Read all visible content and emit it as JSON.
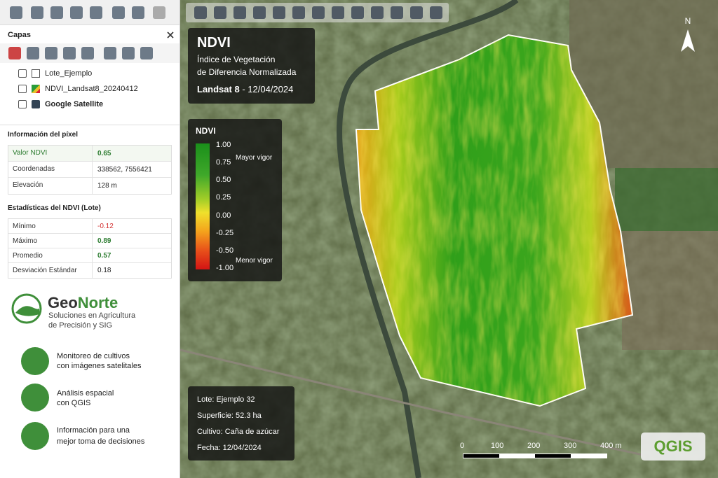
{
  "layers_panel": {
    "title": "Capas",
    "layers": [
      "Lote_Ejemplo",
      "NDVI_Landsat8_20240412",
      "Google Satellite"
    ]
  },
  "pixel_info": {
    "title": "Información del píxel",
    "rows": [
      [
        "Valor NDVI",
        "0.65"
      ],
      [
        "Coordenadas",
        "338562, 7556421"
      ],
      [
        "Elevación",
        "128 m"
      ]
    ]
  },
  "stats": {
    "title": "Estadísticas del NDVI (Lote)",
    "rows": [
      [
        "Mínimo",
        "-0.12"
      ],
      [
        "Máximo",
        "0.89"
      ],
      [
        "Promedio",
        "0.57"
      ],
      [
        "Desviación Estándar",
        "0.18"
      ]
    ]
  },
  "brand": {
    "name_a": "Geo",
    "name_b": "Norte",
    "tagline": [
      "Soluciones en Agricultura",
      "de Precisión y SIG"
    ]
  },
  "features": [
    [
      "Monitoreo de cultivos",
      "con imágenes satelitales"
    ],
    [
      "Análisis espacial",
      "con QGIS"
    ],
    [
      "Información para una",
      "mejor toma de decisiones"
    ]
  ],
  "map": {
    "title": "NDVI",
    "subtitle": [
      "Índice de Vegetación",
      "de Diferencia Normalizada"
    ],
    "sensor": "Landsat 8",
    "separator": "-",
    "date": "12/04/2024"
  },
  "legend": {
    "title": "NDVI",
    "ticks": [
      "1.00",
      "0.75",
      "0.50",
      "0.25",
      "0.00",
      "-0.25",
      "-0.50",
      "-1.00"
    ],
    "high": "Mayor vigor",
    "low": "Menor vigor"
  },
  "info_box": [
    "Lote: Ejemplo 32",
    "Superficie: 52.3 ha",
    "Cultivo: Caña de azúcar",
    "Fecha: 12/04/2024"
  ],
  "scale_bar": [
    "0",
    "100",
    "200",
    "300",
    "400 m"
  ],
  "north": "N",
  "logo": "QGIS"
}
